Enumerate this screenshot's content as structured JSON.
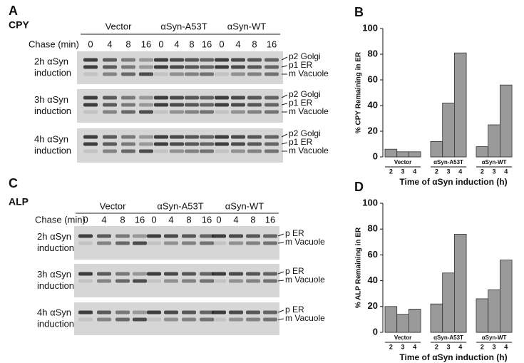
{
  "gels": [
    {
      "panel": "A",
      "protein": "CPY",
      "chase_label": "Chase (min)",
      "groups": [
        "Vector",
        "αSyn-A53T",
        "αSyn-WT"
      ],
      "lanes": [
        "0",
        "4",
        "8",
        "16"
      ],
      "rows": [
        [
          "2h αSyn",
          "induction"
        ],
        [
          "3h αSyn",
          "induction"
        ],
        [
          "4h αSyn",
          "induction"
        ]
      ],
      "band_labels": [
        "p2 Golgi",
        "p1 ER",
        "m Vacuole"
      ]
    },
    {
      "panel": "C",
      "protein": "ALP",
      "chase_label": "Chase (min)",
      "groups": [
        "Vector",
        "αSyn-A53T",
        "αSyn-WT"
      ],
      "lanes": [
        "0",
        "4",
        "8",
        "16"
      ],
      "rows": [
        [
          "2h αSyn",
          "induction"
        ],
        [
          "3h αSyn",
          "induction"
        ],
        [
          "4h αSyn",
          "induction"
        ]
      ],
      "band_labels": [
        "p ER",
        "m Vacuole"
      ]
    }
  ],
  "chart_data": [
    {
      "type": "bar",
      "panel": "B",
      "ylabel": "% CPY Remaining in ER",
      "xlabel": "Time of αSyn induction (h)",
      "categories": [
        "2",
        "3",
        "4"
      ],
      "color": "#9a9a9a",
      "ylim": [
        0,
        100
      ],
      "yticks": [
        0,
        20,
        40,
        60,
        80,
        100
      ],
      "series": [
        {
          "name": "Vector",
          "values": [
            6,
            4,
            4
          ]
        },
        {
          "name": "αSyn-A53T",
          "values": [
            12,
            42,
            81
          ]
        },
        {
          "name": "αSyn-WT",
          "values": [
            8,
            25,
            56
          ]
        }
      ]
    },
    {
      "type": "bar",
      "panel": "D",
      "ylabel": "% ALP Remaining in ER",
      "xlabel": "Time of αSyn induction (h)",
      "categories": [
        "2",
        "3",
        "4"
      ],
      "color": "#9a9a9a",
      "ylim": [
        0,
        100
      ],
      "yticks": [
        0,
        20,
        40,
        60,
        80,
        100
      ],
      "series": [
        {
          "name": "Vector",
          "values": [
            20,
            14,
            18
          ]
        },
        {
          "name": "αSyn-A53T",
          "values": [
            22,
            46,
            76
          ]
        },
        {
          "name": "αSyn-WT",
          "values": [
            26,
            33,
            56
          ]
        }
      ]
    }
  ]
}
